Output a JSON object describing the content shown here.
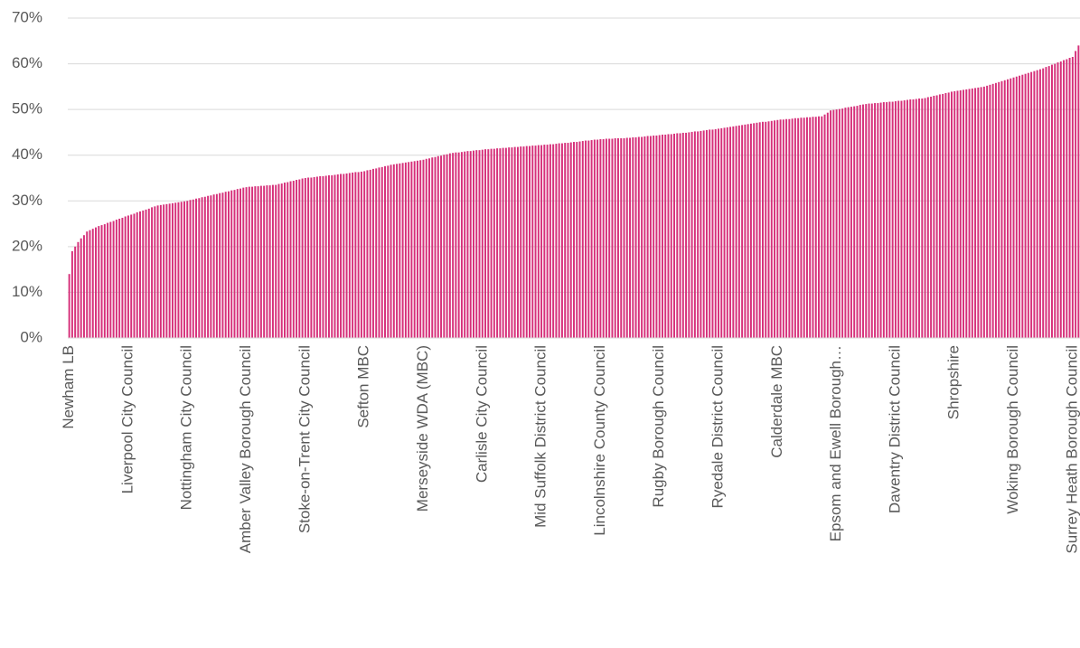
{
  "chart_data": {
    "type": "bar",
    "color": "#d6307a",
    "grid": true,
    "ylim": [
      0,
      70
    ],
    "yticks": [
      {
        "value": 0,
        "label": "0%"
      },
      {
        "value": 10,
        "label": "10%"
      },
      {
        "value": 20,
        "label": "20%"
      },
      {
        "value": 30,
        "label": "30%"
      },
      {
        "value": 40,
        "label": "40%"
      },
      {
        "value": 50,
        "label": "50%"
      },
      {
        "value": 60,
        "label": "60%"
      },
      {
        "value": 70,
        "label": "70%"
      }
    ],
    "categories": [
      "Newham LB",
      null,
      null,
      null,
      null,
      null,
      null,
      null,
      null,
      null,
      null,
      null,
      null,
      null,
      null,
      null,
      null,
      null,
      null,
      null,
      "Liverpool City Council",
      null,
      null,
      null,
      null,
      null,
      null,
      null,
      null,
      null,
      null,
      null,
      null,
      null,
      null,
      null,
      null,
      null,
      null,
      null,
      "Nottingham City Council",
      null,
      null,
      null,
      null,
      null,
      null,
      null,
      null,
      null,
      null,
      null,
      null,
      null,
      null,
      null,
      null,
      null,
      null,
      null,
      "Amber Valley Borough Council",
      null,
      null,
      null,
      null,
      null,
      null,
      null,
      null,
      null,
      null,
      null,
      null,
      null,
      null,
      null,
      null,
      null,
      null,
      null,
      "Stoke-on-Trent City Council",
      null,
      null,
      null,
      null,
      null,
      null,
      null,
      null,
      null,
      null,
      null,
      null,
      null,
      null,
      null,
      null,
      null,
      null,
      null,
      "Sefton MBC",
      null,
      null,
      null,
      null,
      null,
      null,
      null,
      null,
      null,
      null,
      null,
      null,
      null,
      null,
      null,
      null,
      null,
      null,
      null,
      "Merseyside WDA (MBC)",
      null,
      null,
      null,
      null,
      null,
      null,
      null,
      null,
      null,
      null,
      null,
      null,
      null,
      null,
      null,
      null,
      null,
      null,
      null,
      "Carlisle City Council",
      null,
      null,
      null,
      null,
      null,
      null,
      null,
      null,
      null,
      null,
      null,
      null,
      null,
      null,
      null,
      null,
      null,
      null,
      null,
      "Mid Suffolk District Council",
      null,
      null,
      null,
      null,
      null,
      null,
      null,
      null,
      null,
      null,
      null,
      null,
      null,
      null,
      null,
      null,
      null,
      null,
      null,
      "Lincolnshire County Council",
      null,
      null,
      null,
      null,
      null,
      null,
      null,
      null,
      null,
      null,
      null,
      null,
      null,
      null,
      null,
      null,
      null,
      null,
      null,
      "Rugby Borough Council",
      null,
      null,
      null,
      null,
      null,
      null,
      null,
      null,
      null,
      null,
      null,
      null,
      null,
      null,
      null,
      null,
      null,
      null,
      null,
      "Ryedale District Council",
      null,
      null,
      null,
      null,
      null,
      null,
      null,
      null,
      null,
      null,
      null,
      null,
      null,
      null,
      null,
      null,
      null,
      null,
      null,
      "Calderdale MBC",
      null,
      null,
      null,
      null,
      null,
      null,
      null,
      null,
      null,
      null,
      null,
      null,
      null,
      null,
      null,
      null,
      null,
      null,
      null,
      "Epsom and Ewell Borough…",
      null,
      null,
      null,
      null,
      null,
      null,
      null,
      null,
      null,
      null,
      null,
      null,
      null,
      null,
      null,
      null,
      null,
      null,
      null,
      "Daventry District Council",
      null,
      null,
      null,
      null,
      null,
      null,
      null,
      null,
      null,
      null,
      null,
      null,
      null,
      null,
      null,
      null,
      null,
      null,
      null,
      "Shropshire",
      null,
      null,
      null,
      null,
      null,
      null,
      null,
      null,
      null,
      null,
      null,
      null,
      null,
      null,
      null,
      null,
      null,
      null,
      null,
      "Woking Borough Council",
      null,
      null,
      null,
      null,
      null,
      null,
      null,
      null,
      null,
      null,
      null,
      null,
      null,
      null,
      null,
      null,
      null,
      null,
      null,
      "Surrey Heath Borough Council",
      null,
      null
    ],
    "values": [
      14.0,
      19.0,
      20.0,
      21.0,
      21.8,
      22.5,
      23.3,
      23.6,
      23.9,
      24.2,
      24.5,
      24.7,
      24.9,
      25.2,
      25.4,
      25.6,
      25.9,
      26.1,
      26.3,
      26.6,
      26.8,
      27.0,
      27.2,
      27.5,
      27.7,
      27.9,
      28.1,
      28.3,
      28.6,
      28.8,
      29.0,
      29.1,
      29.2,
      29.3,
      29.4,
      29.5,
      29.6,
      29.7,
      29.8,
      29.9,
      30.0,
      30.2,
      30.3,
      30.5,
      30.6,
      30.8,
      30.9,
      31.1,
      31.2,
      31.4,
      31.5,
      31.7,
      31.8,
      32.0,
      32.1,
      32.3,
      32.4,
      32.6,
      32.7,
      32.9,
      33.0,
      33.1,
      33.1,
      33.2,
      33.2,
      33.3,
      33.3,
      33.4,
      33.4,
      33.5,
      33.5,
      33.7,
      33.8,
      34.0,
      34.1,
      34.3,
      34.4,
      34.6,
      34.7,
      34.9,
      35.0,
      35.1,
      35.1,
      35.2,
      35.3,
      35.4,
      35.4,
      35.5,
      35.6,
      35.6,
      35.7,
      35.8,
      35.9,
      35.9,
      36.0,
      36.1,
      36.2,
      36.3,
      36.3,
      36.4,
      36.5,
      36.7,
      36.8,
      37.0,
      37.1,
      37.3,
      37.4,
      37.6,
      37.7,
      37.9,
      38.0,
      38.1,
      38.2,
      38.3,
      38.4,
      38.5,
      38.6,
      38.7,
      38.8,
      38.9,
      39.0,
      39.2,
      39.3,
      39.5,
      39.6,
      39.8,
      39.9,
      40.1,
      40.2,
      40.4,
      40.5,
      40.6,
      40.6,
      40.7,
      40.8,
      40.9,
      40.9,
      41.0,
      41.1,
      41.1,
      41.2,
      41.3,
      41.3,
      41.4,
      41.4,
      41.5,
      41.5,
      41.6,
      41.6,
      41.7,
      41.7,
      41.8,
      41.8,
      41.9,
      41.9,
      42.0,
      42.0,
      42.1,
      42.1,
      42.2,
      42.2,
      42.3,
      42.3,
      42.4,
      42.4,
      42.5,
      42.6,
      42.6,
      42.7,
      42.7,
      42.8,
      42.9,
      42.9,
      43.0,
      43.1,
      43.2,
      43.2,
      43.3,
      43.4,
      43.4,
      43.5,
      43.5,
      43.6,
      43.6,
      43.6,
      43.7,
      43.7,
      43.7,
      43.7,
      43.8,
      43.8,
      43.9,
      43.9,
      44.0,
      44.0,
      44.1,
      44.2,
      44.2,
      44.3,
      44.3,
      44.4,
      44.5,
      44.5,
      44.6,
      44.6,
      44.7,
      44.8,
      44.8,
      44.9,
      44.9,
      45.0,
      45.1,
      45.2,
      45.2,
      45.3,
      45.4,
      45.5,
      45.6,
      45.6,
      45.7,
      45.8,
      45.9,
      46.0,
      46.1,
      46.2,
      46.3,
      46.4,
      46.5,
      46.6,
      46.7,
      46.8,
      46.9,
      47.0,
      47.1,
      47.2,
      47.3,
      47.3,
      47.4,
      47.5,
      47.6,
      47.7,
      47.8,
      47.8,
      47.9,
      47.9,
      48.0,
      48.1,
      48.1,
      48.2,
      48.2,
      48.3,
      48.3,
      48.4,
      48.4,
      48.5,
      48.5,
      48.9,
      49.3,
      49.8,
      49.9,
      50.0,
      50.1,
      50.2,
      50.4,
      50.5,
      50.6,
      50.7,
      50.8,
      51.0,
      51.1,
      51.2,
      51.3,
      51.3,
      51.4,
      51.4,
      51.5,
      51.6,
      51.6,
      51.7,
      51.7,
      51.8,
      51.9,
      51.9,
      52.0,
      52.1,
      52.2,
      52.2,
      52.3,
      52.4,
      52.4,
      52.5,
      52.7,
      52.8,
      53.0,
      53.1,
      53.3,
      53.4,
      53.6,
      53.7,
      53.9,
      54.0,
      54.1,
      54.2,
      54.3,
      54.4,
      54.5,
      54.6,
      54.7,
      54.8,
      54.9,
      55.0,
      55.2,
      55.4,
      55.6,
      55.8,
      56.0,
      56.2,
      56.4,
      56.6,
      56.8,
      57.0,
      57.2,
      57.4,
      57.6,
      57.8,
      58.0,
      58.2,
      58.4,
      58.6,
      58.8,
      59.0,
      59.3,
      59.5,
      59.8,
      60.0,
      60.3,
      60.5,
      60.8,
      61.0,
      61.3,
      61.5,
      62.8,
      64.0
    ]
  }
}
